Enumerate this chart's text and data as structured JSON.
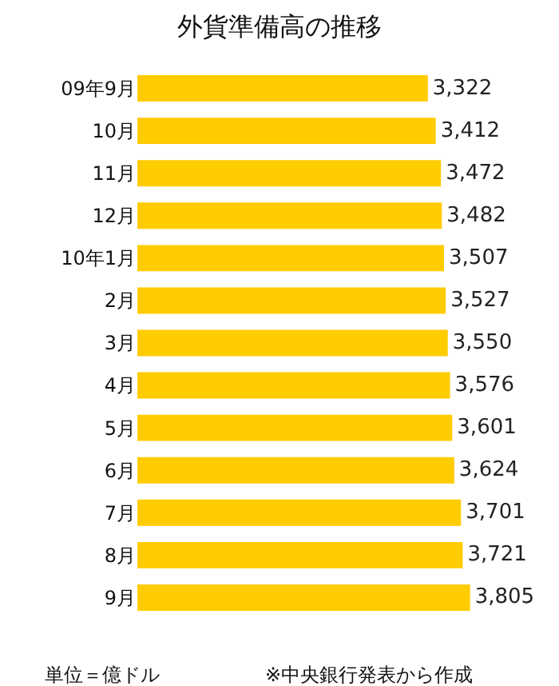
{
  "chart_data": {
    "type": "bar",
    "orientation": "horizontal",
    "title": "外貨準備高の推移",
    "categories": [
      "09年9月",
      "10月",
      "11月",
      "12月",
      "10年1月",
      "2月",
      "3月",
      "4月",
      "5月",
      "6月",
      "7月",
      "8月",
      "9月"
    ],
    "values": [
      3322,
      3412,
      3472,
      3482,
      3507,
      3527,
      3550,
      3576,
      3601,
      3624,
      3701,
      3721,
      3805
    ],
    "value_labels": [
      "3,322",
      "3,412",
      "3,472",
      "3,482",
      "3,507",
      "3,527",
      "3,550",
      "3,576",
      "3,601",
      "3,624",
      "3,701",
      "3,721",
      "3,805"
    ],
    "color": "#ffcc00",
    "tick_labels": "y",
    "legend": false,
    "annotations": [
      "単位＝億ドル",
      "※中央銀行発表から作成"
    ]
  }
}
